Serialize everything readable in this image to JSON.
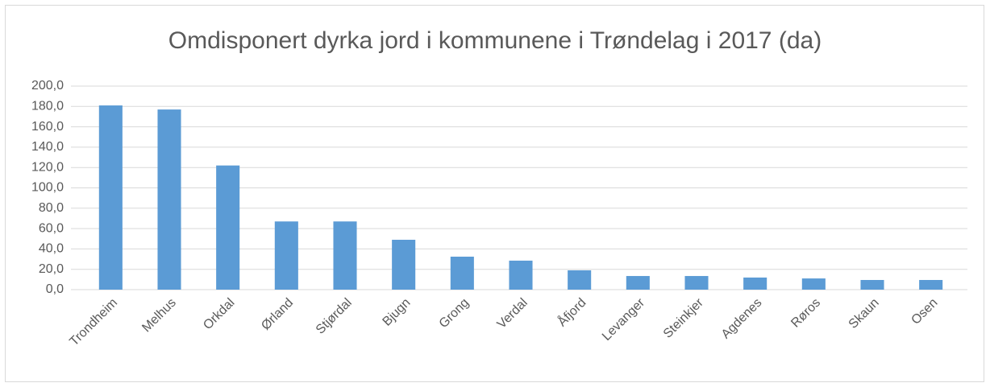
{
  "chart_data": {
    "type": "bar",
    "title": "Omdisponert dyrka jord i kommunene i Trøndelag i 2017 (da)",
    "categories": [
      "Trondheim",
      "Melhus",
      "Orkdal",
      "Ørland",
      "Stjørdal",
      "Bjugn",
      "Grong",
      "Verdal",
      "Åfjord",
      "Levanger",
      "Steinkjer",
      "Agdenes",
      "Røros",
      "Skaun",
      "Osen"
    ],
    "values": [
      181,
      177,
      122,
      67,
      67,
      49,
      32.4,
      28.5,
      19,
      13.4,
      13.4,
      11.9,
      11,
      9.5,
      9.5
    ],
    "color": "#5b9bd5",
    "ylim": [
      0,
      200
    ],
    "yticks": [
      {
        "value": 0,
        "label": "0,0"
      },
      {
        "value": 20,
        "label": "20,0"
      },
      {
        "value": 40,
        "label": "40,0"
      },
      {
        "value": 60,
        "label": "60,0"
      },
      {
        "value": 80,
        "label": "80,0"
      },
      {
        "value": 100,
        "label": "100,0"
      },
      {
        "value": 120,
        "label": "120,0"
      },
      {
        "value": 140,
        "label": "140,0"
      },
      {
        "value": 160,
        "label": "160,0"
      },
      {
        "value": 180,
        "label": "180,0"
      },
      {
        "value": 200,
        "label": "200,0"
      }
    ],
    "grid": true
  }
}
